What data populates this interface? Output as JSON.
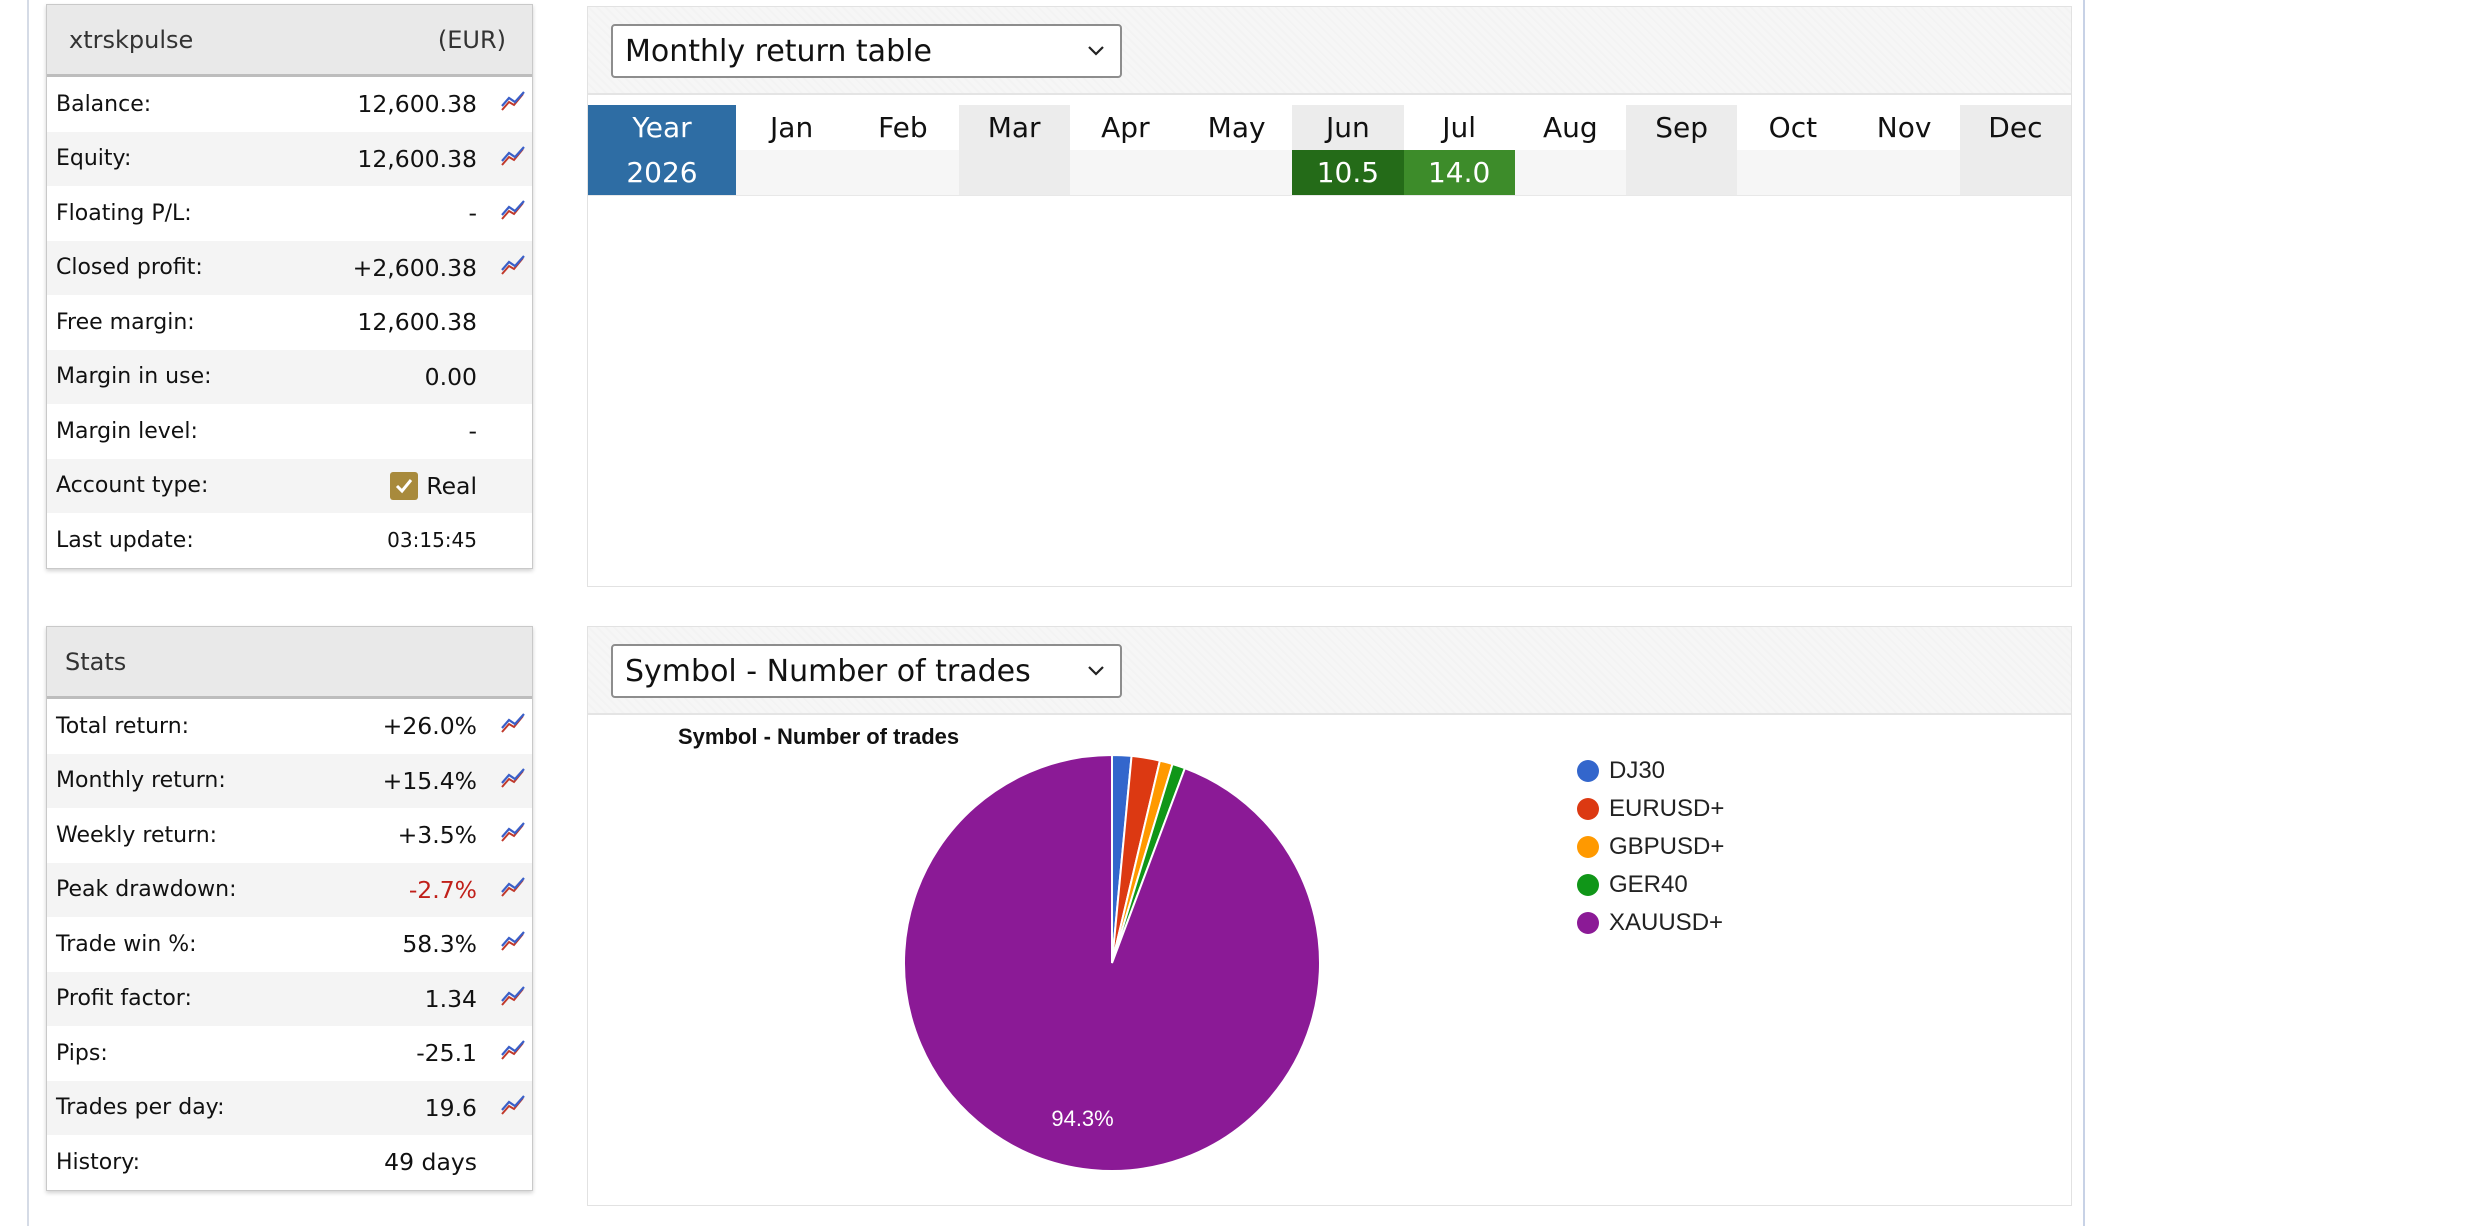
{
  "account": {
    "name": "xtrskpulse",
    "currency": "(EUR)",
    "rows": [
      {
        "label": "Balance:",
        "value": "12,600.38",
        "chart": true
      },
      {
        "label": "Equity:",
        "value": "12,600.38",
        "chart": true
      },
      {
        "label": "Floating P/L:",
        "value": "-",
        "chart": true
      },
      {
        "label": "Closed profit:",
        "value": "+2,600.38",
        "chart": true
      },
      {
        "label": "Free margin:",
        "value": "12,600.38",
        "chart": false
      },
      {
        "label": "Margin in use:",
        "value": "0.00",
        "chart": false
      },
      {
        "label": "Margin level:",
        "value": "-",
        "chart": false
      },
      {
        "label": "Account type:",
        "value": "Real",
        "chart": false
      },
      {
        "label": "Last update:",
        "value": "03:15:45",
        "chart": false
      }
    ]
  },
  "stats": {
    "title": "Stats",
    "rows": [
      {
        "label": "Total return:",
        "value": "+26.0%"
      },
      {
        "label": "Monthly return:",
        "value": "+15.4%"
      },
      {
        "label": "Weekly return:",
        "value": "+3.5%"
      },
      {
        "label": "Peak drawdown:",
        "value": "-2.7%"
      },
      {
        "label": "Trade win %:",
        "value": "58.3%"
      },
      {
        "label": "Profit factor:",
        "value": "1.34"
      },
      {
        "label": "Pips:",
        "value": "-25.1"
      },
      {
        "label": "Trades per day:",
        "value": "19.6"
      },
      {
        "label": "History:",
        "value": "49 days"
      }
    ]
  },
  "monthly": {
    "select_value": "Monthly return table",
    "year_header": "Year",
    "months": [
      "Jan",
      "Feb",
      "Mar",
      "Apr",
      "May",
      "Jun",
      "Jul",
      "Aug",
      "Sep",
      "Oct",
      "Nov",
      "Dec"
    ],
    "year": "2026",
    "values": [
      "",
      "",
      "",
      "",
      "",
      "10.5",
      "14.0",
      "",
      "",
      "",
      "",
      ""
    ]
  },
  "symbols": {
    "select_value": "Symbol - Number of trades"
  },
  "chart_data": {
    "type": "pie",
    "title": "Symbol - Number of trades",
    "categories": [
      "DJ30",
      "EURUSD+",
      "GBPUSD+",
      "GER40",
      "XAUUSD+"
    ],
    "values": [
      1.5,
      2.2,
      1.0,
      1.0,
      94.3
    ],
    "colors": [
      "#3366cc",
      "#dc3912",
      "#ff9900",
      "#109618",
      "#8b1a96"
    ],
    "data_labels": [
      "",
      "",
      "",
      "",
      "94.3%"
    ],
    "legend": "right"
  }
}
